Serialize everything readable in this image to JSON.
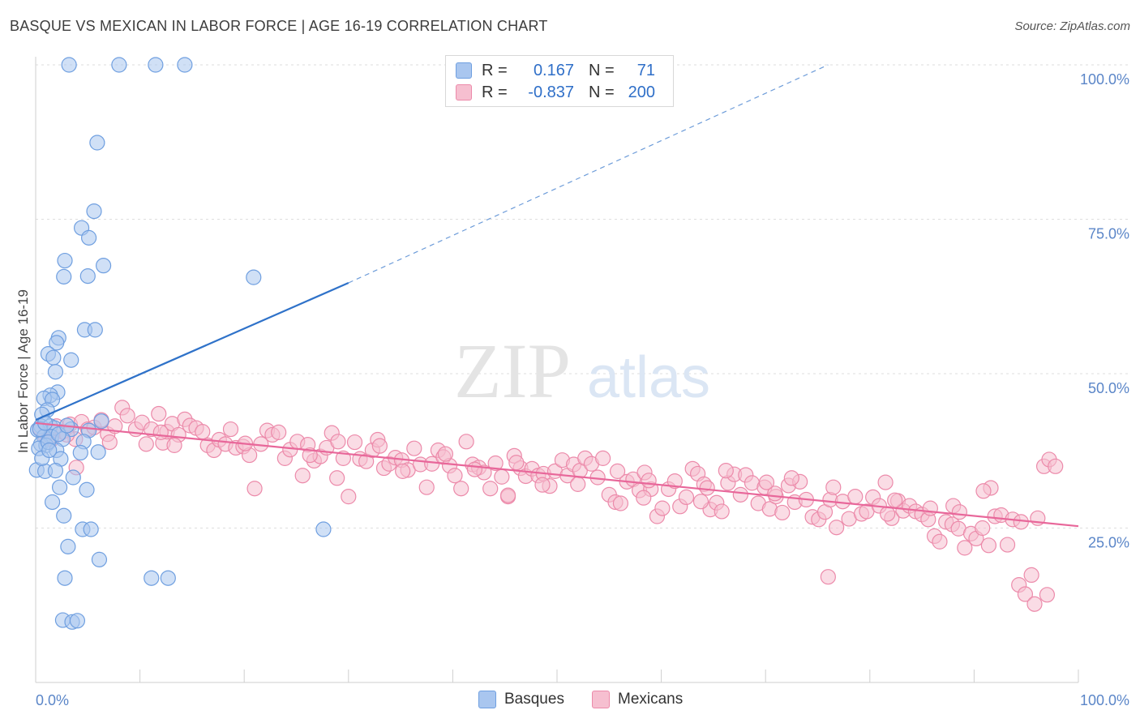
{
  "header": {
    "title": "BASQUE VS MEXICAN IN LABOR FORCE | AGE 16-19 CORRELATION CHART",
    "source": "Source: ZipAtlas.com"
  },
  "legend": {
    "rows": [
      {
        "r_label": "R =",
        "r_value": "0.167",
        "n_label": "N =",
        "n_value": "71",
        "color": "#a9c6ef",
        "border": "#6f9fe0"
      },
      {
        "r_label": "R =",
        "r_value": "-0.837",
        "n_label": "N =",
        "n_value": "200",
        "color": "#f6bfd0",
        "border": "#ec8aaa"
      }
    ]
  },
  "bottom_legend": [
    {
      "label": "Basques",
      "color": "#a9c6ef",
      "border": "#6f9fe0"
    },
    {
      "label": "Mexicans",
      "color": "#f6bfd0",
      "border": "#ec8aaa"
    }
  ],
  "watermark": {
    "zip": "ZIP",
    "atlas": "atlas"
  },
  "chart_data": {
    "type": "scatter",
    "title": "BASQUE VS MEXICAN IN LABOR FORCE | AGE 16-19 CORRELATION CHART",
    "xlabel": "",
    "ylabel": "In Labor Force | Age 16-19",
    "xlim": [
      0,
      100
    ],
    "ylim": [
      0,
      100
    ],
    "x_tick_labels": [
      "0.0%",
      "100.0%"
    ],
    "y_tick_labels": [
      "25.0%",
      "50.0%",
      "75.0%",
      "100.0%"
    ],
    "y_ticks": [
      25,
      50,
      75,
      100
    ],
    "grid": true,
    "legend_position": "top-center",
    "series": [
      {
        "name": "Basques",
        "color": "#a9c6ef",
        "stroke": "#6f9fe0",
        "trend_color": "#2f72c9",
        "trend": {
          "x": [
            0,
            30,
            76
          ],
          "y": [
            42.5,
            64.7,
            100
          ],
          "solid_until": 30
        },
        "points": [
          [
            3.2,
            100
          ],
          [
            8.0,
            100
          ],
          [
            11.5,
            100
          ],
          [
            14.3,
            100
          ],
          [
            5.9,
            87.4
          ],
          [
            5.6,
            76.3
          ],
          [
            4.4,
            73.6
          ],
          [
            5.1,
            72.0
          ],
          [
            2.8,
            68.3
          ],
          [
            6.5,
            67.5
          ],
          [
            2.7,
            65.7
          ],
          [
            5.0,
            65.8
          ],
          [
            20.9,
            65.6
          ],
          [
            4.7,
            57.1
          ],
          [
            5.7,
            57.1
          ],
          [
            2.2,
            55.8
          ],
          [
            2.0,
            55.0
          ],
          [
            1.2,
            53.2
          ],
          [
            1.7,
            52.6
          ],
          [
            3.4,
            52.2
          ],
          [
            1.9,
            50.3
          ],
          [
            2.1,
            47.0
          ],
          [
            1.4,
            46.5
          ],
          [
            0.8,
            46.0
          ],
          [
            1.6,
            45.8
          ],
          [
            1.1,
            44.1
          ],
          [
            0.6,
            43.4
          ],
          [
            6.3,
            42.3
          ],
          [
            0.5,
            41.5
          ],
          [
            1.4,
            41.5
          ],
          [
            1.8,
            41.2
          ],
          [
            3.4,
            41.0
          ],
          [
            5.1,
            40.8
          ],
          [
            0.2,
            40.9
          ],
          [
            0.8,
            39.8
          ],
          [
            1.5,
            39.8
          ],
          [
            2.6,
            39.4
          ],
          [
            4.6,
            39.0
          ],
          [
            0.5,
            38.6
          ],
          [
            1.0,
            38.4
          ],
          [
            0.3,
            37.9
          ],
          [
            2.0,
            37.6
          ],
          [
            6.0,
            37.3
          ],
          [
            4.3,
            37.2
          ],
          [
            2.4,
            36.2
          ],
          [
            0.1,
            34.4
          ],
          [
            0.9,
            34.2
          ],
          [
            1.9,
            34.3
          ],
          [
            3.6,
            33.2
          ],
          [
            2.3,
            31.6
          ],
          [
            4.9,
            31.2
          ],
          [
            1.6,
            29.2
          ],
          [
            2.7,
            27.0
          ],
          [
            4.5,
            24.8
          ],
          [
            5.3,
            24.8
          ],
          [
            27.6,
            24.8
          ],
          [
            3.1,
            22.0
          ],
          [
            6.1,
            19.9
          ],
          [
            2.8,
            16.9
          ],
          [
            11.1,
            16.9
          ],
          [
            12.7,
            16.9
          ],
          [
            2.6,
            10.1
          ],
          [
            3.5,
            9.8
          ],
          [
            4.0,
            10.0
          ],
          [
            0.4,
            41.0
          ],
          [
            1.2,
            38.9
          ],
          [
            2.2,
            40.2
          ],
          [
            0.6,
            36.3
          ],
          [
            1.3,
            37.6
          ],
          [
            3.0,
            41.6
          ],
          [
            0.9,
            42.0
          ]
        ]
      },
      {
        "name": "Mexicans",
        "color": "#f6bfd0",
        "stroke": "#ec8aaa",
        "trend_color": "#e8679a",
        "trend": {
          "x": [
            0,
            100
          ],
          "y": [
            42.0,
            25.3
          ],
          "solid_until": 100
        },
        "points": [
          [
            0.4,
            41.2
          ],
          [
            0.9,
            40.0
          ],
          [
            1.5,
            39.3
          ],
          [
            2.0,
            41.5
          ],
          [
            2.6,
            40.6
          ],
          [
            3.3,
            41.8
          ],
          [
            3.8,
            39.4
          ],
          [
            4.4,
            42.2
          ],
          [
            5.0,
            41.0
          ],
          [
            5.6,
            41.3
          ],
          [
            6.3,
            42.5
          ],
          [
            6.9,
            40.2
          ],
          [
            7.6,
            41.5
          ],
          [
            8.3,
            44.5
          ],
          [
            8.8,
            43.2
          ],
          [
            9.6,
            41.0
          ],
          [
            10.2,
            42.1
          ],
          [
            10.6,
            38.6
          ],
          [
            11.1,
            41.0
          ],
          [
            11.8,
            43.5
          ],
          [
            12.2,
            38.8
          ],
          [
            12.6,
            40.6
          ],
          [
            13.1,
            41.9
          ],
          [
            13.7,
            40.1
          ],
          [
            14.3,
            42.6
          ],
          [
            14.8,
            41.6
          ],
          [
            15.4,
            41.2
          ],
          [
            16.0,
            40.6
          ],
          [
            16.5,
            38.4
          ],
          [
            17.1,
            37.6
          ],
          [
            17.6,
            39.3
          ],
          [
            18.2,
            38.6
          ],
          [
            18.7,
            41.0
          ],
          [
            19.2,
            38.0
          ],
          [
            19.9,
            38.2
          ],
          [
            20.5,
            36.8
          ],
          [
            21.0,
            31.4
          ],
          [
            21.6,
            38.6
          ],
          [
            22.2,
            40.8
          ],
          [
            22.7,
            40.1
          ],
          [
            23.3,
            40.5
          ],
          [
            23.9,
            36.3
          ],
          [
            24.4,
            37.7
          ],
          [
            25.1,
            39.0
          ],
          [
            25.6,
            33.5
          ],
          [
            26.1,
            38.5
          ],
          [
            26.7,
            35.9
          ],
          [
            27.3,
            36.6
          ],
          [
            27.9,
            38.0
          ],
          [
            28.4,
            40.4
          ],
          [
            28.9,
            33.1
          ],
          [
            29.5,
            36.3
          ],
          [
            30.0,
            30.1
          ],
          [
            30.6,
            38.9
          ],
          [
            31.1,
            36.2
          ],
          [
            31.7,
            35.8
          ],
          [
            32.3,
            37.6
          ],
          [
            32.8,
            39.3
          ],
          [
            33.4,
            34.7
          ],
          [
            33.9,
            35.4
          ],
          [
            34.5,
            36.4
          ],
          [
            35.1,
            36.0
          ],
          [
            35.7,
            34.4
          ],
          [
            36.3,
            37.9
          ],
          [
            36.9,
            35.3
          ],
          [
            37.5,
            31.6
          ],
          [
            38.0,
            35.4
          ],
          [
            38.6,
            37.6
          ],
          [
            39.1,
            36.5
          ],
          [
            39.7,
            35.1
          ],
          [
            40.2,
            33.5
          ],
          [
            40.8,
            31.4
          ],
          [
            41.3,
            39.0
          ],
          [
            41.9,
            35.3
          ],
          [
            42.5,
            34.8
          ],
          [
            43.0,
            34.0
          ],
          [
            43.6,
            31.4
          ],
          [
            44.1,
            35.5
          ],
          [
            44.7,
            33.3
          ],
          [
            45.3,
            30.1
          ],
          [
            45.9,
            36.7
          ],
          [
            46.5,
            34.7
          ],
          [
            47.0,
            33.4
          ],
          [
            47.6,
            34.6
          ],
          [
            48.2,
            33.5
          ],
          [
            48.7,
            33.8
          ],
          [
            49.3,
            31.8
          ],
          [
            49.8,
            34.2
          ],
          [
            50.5,
            36.0
          ],
          [
            51.0,
            33.5
          ],
          [
            51.6,
            35.3
          ],
          [
            52.2,
            34.3
          ],
          [
            52.7,
            36.3
          ],
          [
            53.3,
            35.4
          ],
          [
            53.9,
            33.2
          ],
          [
            54.4,
            36.3
          ],
          [
            55.0,
            30.4
          ],
          [
            55.6,
            29.2
          ],
          [
            56.1,
            29.0
          ],
          [
            56.7,
            32.5
          ],
          [
            57.3,
            32.9
          ],
          [
            57.9,
            31.1
          ],
          [
            58.4,
            34.0
          ],
          [
            59.0,
            31.3
          ],
          [
            59.6,
            26.9
          ],
          [
            60.1,
            28.2
          ],
          [
            60.7,
            31.3
          ],
          [
            61.3,
            32.6
          ],
          [
            61.8,
            28.5
          ],
          [
            62.4,
            30.0
          ],
          [
            63.0,
            34.6
          ],
          [
            63.5,
            33.8
          ],
          [
            64.1,
            32.1
          ],
          [
            64.7,
            28.0
          ],
          [
            65.3,
            29.1
          ],
          [
            65.8,
            27.7
          ],
          [
            66.4,
            32.3
          ],
          [
            67.0,
            33.7
          ],
          [
            67.6,
            30.4
          ],
          [
            68.1,
            33.6
          ],
          [
            68.7,
            32.3
          ],
          [
            69.3,
            29.0
          ],
          [
            69.9,
            31.6
          ],
          [
            70.4,
            28.1
          ],
          [
            71.0,
            30.1
          ],
          [
            71.6,
            27.5
          ],
          [
            72.2,
            31.9
          ],
          [
            72.8,
            29.2
          ],
          [
            73.3,
            32.5
          ],
          [
            73.9,
            29.6
          ],
          [
            74.5,
            26.8
          ],
          [
            75.1,
            26.4
          ],
          [
            75.7,
            27.6
          ],
          [
            76.2,
            29.6
          ],
          [
            76.8,
            25.1
          ],
          [
            77.4,
            29.3
          ],
          [
            78.0,
            26.5
          ],
          [
            78.6,
            30.1
          ],
          [
            79.2,
            27.3
          ],
          [
            79.7,
            27.7
          ],
          [
            80.3,
            30.0
          ],
          [
            80.9,
            28.6
          ],
          [
            81.5,
            32.4
          ],
          [
            82.1,
            26.6
          ],
          [
            82.7,
            29.4
          ],
          [
            83.2,
            27.8
          ],
          [
            83.8,
            28.6
          ],
          [
            84.4,
            27.7
          ],
          [
            85.0,
            27.2
          ],
          [
            85.6,
            26.4
          ],
          [
            86.2,
            23.7
          ],
          [
            86.7,
            22.8
          ],
          [
            87.3,
            26.0
          ],
          [
            87.9,
            25.6
          ],
          [
            88.5,
            24.9
          ],
          [
            89.1,
            21.8
          ],
          [
            89.7,
            24.1
          ],
          [
            90.2,
            23.3
          ],
          [
            90.8,
            25.0
          ],
          [
            91.4,
            22.2
          ],
          [
            92.0,
            26.9
          ],
          [
            92.6,
            27.1
          ],
          [
            93.2,
            22.3
          ],
          [
            93.7,
            26.4
          ],
          [
            94.3,
            15.8
          ],
          [
            94.9,
            14.3
          ],
          [
            95.5,
            17.4
          ],
          [
            96.1,
            26.6
          ],
          [
            96.7,
            35.0
          ],
          [
            97.2,
            36.1
          ],
          [
            97.8,
            35.0
          ],
          [
            91.6,
            31.5
          ],
          [
            90.9,
            31.0
          ],
          [
            63.8,
            29.3
          ],
          [
            58.8,
            32.7
          ],
          [
            45.3,
            30.3
          ],
          [
            70.9,
            30.6
          ],
          [
            81.7,
            27.3
          ],
          [
            85.8,
            28.2
          ],
          [
            88.0,
            28.6
          ],
          [
            76.0,
            17.1
          ],
          [
            95.8,
            12.7
          ],
          [
            97.0,
            14.2
          ],
          [
            1.2,
            39.5
          ],
          [
            3.0,
            40.1
          ],
          [
            7.1,
            38.9
          ],
          [
            13.3,
            38.4
          ],
          [
            20.1,
            38.7
          ],
          [
            26.3,
            36.8
          ],
          [
            33.0,
            38.3
          ],
          [
            39.3,
            37.0
          ],
          [
            46.1,
            35.6
          ],
          [
            52.0,
            32.1
          ],
          [
            58.3,
            29.9
          ],
          [
            64.4,
            31.5
          ],
          [
            70.1,
            32.4
          ],
          [
            76.5,
            31.6
          ],
          [
            82.4,
            29.5
          ],
          [
            88.6,
            27.6
          ],
          [
            94.5,
            26.0
          ],
          [
            35.2,
            34.2
          ],
          [
            29.0,
            39.0
          ],
          [
            12.0,
            40.5
          ],
          [
            66.2,
            34.3
          ],
          [
            42.1,
            34.5
          ],
          [
            55.8,
            34.2
          ],
          [
            48.6,
            32.0
          ],
          [
            72.5,
            33.1
          ],
          [
            3.9,
            34.8
          ]
        ]
      }
    ]
  }
}
